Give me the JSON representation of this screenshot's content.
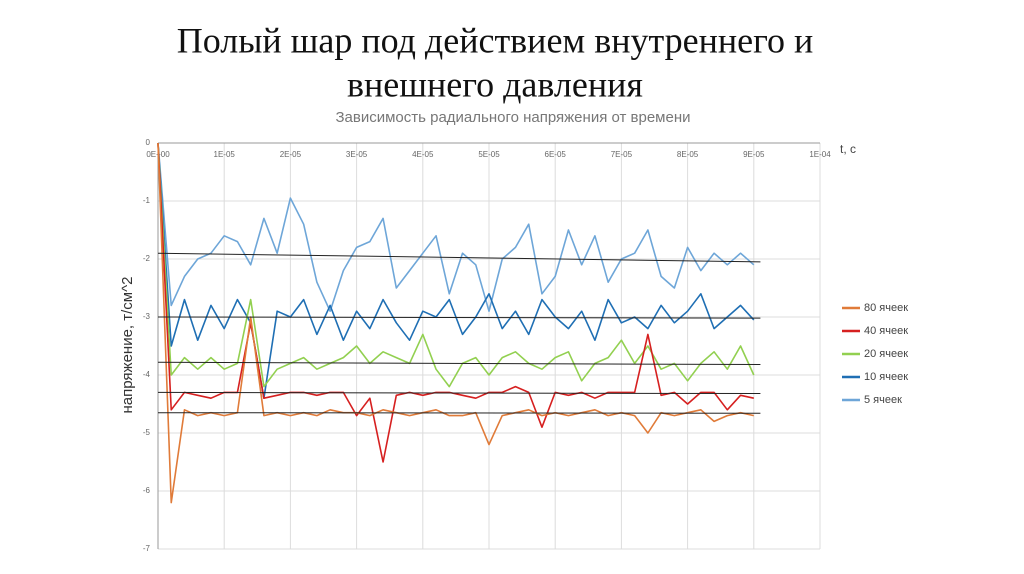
{
  "slide_title": [
    "Полый шар под действием внутреннего и",
    "внешнего давления"
  ],
  "chart_data": {
    "type": "line",
    "title": "Зависимость радиального напряжения от времени",
    "x_label": "t, c",
    "y_label": "напряжение, т/см^2",
    "xlim": [
      0,
      0.0001
    ],
    "ylim": [
      -7,
      0
    ],
    "xticks": [
      {
        "value": 0,
        "label": "0E+00"
      },
      {
        "value": 1e-05,
        "label": "1E-05"
      },
      {
        "value": 2e-05,
        "label": "2E-05"
      },
      {
        "value": 3e-05,
        "label": "3E-05"
      },
      {
        "value": 4e-05,
        "label": "4E-05"
      },
      {
        "value": 5e-05,
        "label": "5E-05"
      },
      {
        "value": 6e-05,
        "label": "6E-05"
      },
      {
        "value": 7e-05,
        "label": "7E-05"
      },
      {
        "value": 8e-05,
        "label": "8E-05"
      },
      {
        "value": 9e-05,
        "label": "9E-05"
      },
      {
        "value": 0.0001,
        "label": "1E-04"
      }
    ],
    "yticks": [
      0,
      -1,
      -2,
      -3,
      -4,
      -5,
      -6,
      -7
    ],
    "grid": true,
    "legend": "right",
    "x": [
      0,
      2e-06,
      4e-06,
      6e-06,
      8e-06,
      1e-05,
      1.2e-05,
      1.4e-05,
      1.6e-05,
      1.8e-05,
      2e-05,
      2.2e-05,
      2.4e-05,
      2.6e-05,
      2.8e-05,
      3e-05,
      3.2e-05,
      3.4e-05,
      3.6e-05,
      3.8e-05,
      4e-05,
      4.2e-05,
      4.4e-05,
      4.6e-05,
      4.8e-05,
      5e-05,
      5.2e-05,
      5.4e-05,
      5.6e-05,
      5.8e-05,
      6e-05,
      6.2e-05,
      6.4e-05,
      6.6e-05,
      6.8e-05,
      7e-05,
      7.2e-05,
      7.4e-05,
      7.6e-05,
      7.8e-05,
      8e-05,
      8.2e-05,
      8.4e-05,
      8.6e-05,
      8.8e-05,
      9e-05
    ],
    "series": [
      {
        "name": "80 ячеек",
        "color": "#e07b39",
        "values": [
          0,
          -6.2,
          -4.6,
          -4.7,
          -4.65,
          -4.7,
          -4.65,
          -3.0,
          -4.7,
          -4.65,
          -4.7,
          -4.65,
          -4.7,
          -4.6,
          -4.65,
          -4.65,
          -4.7,
          -4.6,
          -4.65,
          -4.7,
          -4.65,
          -4.6,
          -4.7,
          -4.7,
          -4.65,
          -5.2,
          -4.7,
          -4.65,
          -4.6,
          -4.7,
          -4.65,
          -4.7,
          -4.65,
          -4.6,
          -4.7,
          -4.65,
          -4.7,
          -5.0,
          -4.65,
          -4.7,
          -4.65,
          -4.6,
          -4.8,
          -4.7,
          -4.65,
          -4.7
        ]
      },
      {
        "name": "40 ячеек",
        "color": "#d62020",
        "values": [
          0,
          -4.6,
          -4.3,
          -4.35,
          -4.4,
          -4.3,
          -4.3,
          -3.1,
          -4.4,
          -4.35,
          -4.3,
          -4.3,
          -4.35,
          -4.3,
          -4.3,
          -4.7,
          -4.4,
          -5.5,
          -4.35,
          -4.3,
          -4.35,
          -4.3,
          -4.3,
          -4.35,
          -4.4,
          -4.3,
          -4.3,
          -4.2,
          -4.3,
          -4.9,
          -4.3,
          -4.35,
          -4.3,
          -4.4,
          -4.3,
          -4.3,
          -4.3,
          -3.3,
          -4.35,
          -4.3,
          -4.5,
          -4.3,
          -4.3,
          -4.6,
          -4.35,
          -4.4
        ]
      },
      {
        "name": "20 ячеек",
        "color": "#92d050",
        "values": [
          0,
          -4.0,
          -3.7,
          -3.9,
          -3.7,
          -3.9,
          -3.8,
          -2.7,
          -4.2,
          -3.9,
          -3.8,
          -3.7,
          -3.9,
          -3.8,
          -3.7,
          -3.5,
          -3.8,
          -3.6,
          -3.7,
          -3.8,
          -3.3,
          -3.9,
          -4.2,
          -3.8,
          -3.7,
          -4.0,
          -3.7,
          -3.6,
          -3.8,
          -3.9,
          -3.7,
          -3.6,
          -4.1,
          -3.8,
          -3.7,
          -3.4,
          -3.8,
          -3.5,
          -3.9,
          -3.8,
          -4.1,
          -3.8,
          -3.6,
          -3.9,
          -3.5,
          -4.0
        ]
      },
      {
        "name": "10 ячеек",
        "color": "#1f6fb4",
        "values": [
          0,
          -3.5,
          -2.7,
          -3.4,
          -2.8,
          -3.2,
          -2.7,
          -3.1,
          -4.4,
          -2.9,
          -3.0,
          -2.7,
          -3.3,
          -2.8,
          -3.4,
          -2.9,
          -3.2,
          -2.7,
          -3.1,
          -3.4,
          -2.9,
          -3.0,
          -2.7,
          -3.3,
          -3.0,
          -2.6,
          -3.2,
          -2.9,
          -3.3,
          -2.7,
          -3.0,
          -3.2,
          -2.9,
          -3.4,
          -2.7,
          -3.1,
          -3.0,
          -3.2,
          -2.8,
          -3.1,
          -2.9,
          -2.6,
          -3.2,
          -3.0,
          -2.8,
          -3.05
        ]
      },
      {
        "name": "5 ячеек",
        "color": "#6ea6d8",
        "values": [
          0,
          -2.8,
          -2.3,
          -2.0,
          -1.9,
          -1.6,
          -1.7,
          -2.1,
          -1.3,
          -1.9,
          -0.95,
          -1.4,
          -2.4,
          -2.9,
          -2.2,
          -1.8,
          -1.7,
          -1.3,
          -2.5,
          -2.2,
          -1.9,
          -1.6,
          -2.6,
          -1.9,
          -2.1,
          -2.9,
          -2.0,
          -1.8,
          -1.4,
          -2.6,
          -2.3,
          -1.5,
          -2.1,
          -1.6,
          -2.4,
          -2.0,
          -1.9,
          -1.5,
          -2.3,
          -2.5,
          -1.8,
          -2.2,
          -1.9,
          -2.1,
          -1.9,
          -2.1
        ]
      }
    ],
    "trend_lines": [
      {
        "color": "#222222",
        "x": [
          0,
          9.1e-05
        ],
        "values": [
          -1.9,
          -2.05
        ]
      },
      {
        "color": "#222222",
        "x": [
          0,
          9.1e-05
        ],
        "values": [
          -3.0,
          -3.02
        ]
      },
      {
        "color": "#222222",
        "x": [
          0,
          9.1e-05
        ],
        "values": [
          -3.78,
          -3.82
        ]
      },
      {
        "color": "#222222",
        "x": [
          0,
          9.1e-05
        ],
        "values": [
          -4.3,
          -4.32
        ]
      },
      {
        "color": "#222222",
        "x": [
          0,
          9.1e-05
        ],
        "values": [
          -4.65,
          -4.66
        ]
      }
    ]
  }
}
